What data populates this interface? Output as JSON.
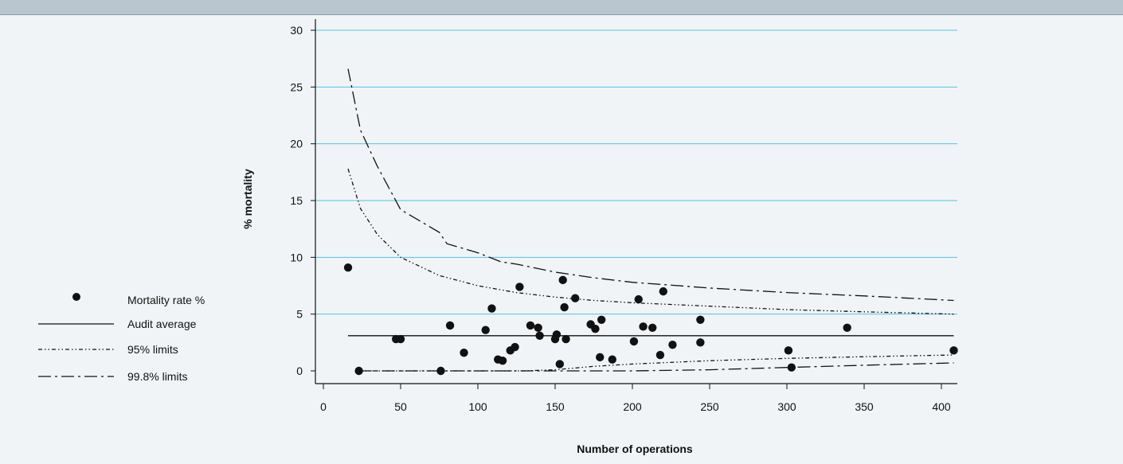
{
  "colors": {
    "background": "#f1f4f6",
    "top_band": "#b9c6cf",
    "gridline": "#4fc3e6",
    "ink": "#111111"
  },
  "chart_data": {
    "type": "scatter",
    "title": "",
    "xlabel": "Number of operations",
    "ylabel": "% mortality",
    "xlim": [
      0,
      410
    ],
    "ylim": [
      0,
      30
    ],
    "x_ticks": [
      "0",
      "50",
      "100",
      "150",
      "200",
      "250",
      "300",
      "350",
      "400"
    ],
    "y_ticks": [
      "0",
      "5",
      "10",
      "15",
      "20",
      "25",
      "30"
    ],
    "grid": "horizontal",
    "legend_position": "left",
    "series": [
      {
        "name": "Mortality rate %",
        "kind": "points",
        "points": [
          [
            16,
            9.1
          ],
          [
            23,
            0
          ],
          [
            47,
            2.8
          ],
          [
            50,
            2.8
          ],
          [
            76,
            0
          ],
          [
            82,
            4.0
          ],
          [
            91,
            1.6
          ],
          [
            105,
            3.6
          ],
          [
            109,
            5.5
          ],
          [
            113,
            1.0
          ],
          [
            116,
            0.9
          ],
          [
            121,
            1.8
          ],
          [
            124,
            2.1
          ],
          [
            127,
            7.4
          ],
          [
            134,
            4.0
          ],
          [
            139,
            3.8
          ],
          [
            140,
            3.1
          ],
          [
            150,
            2.8
          ],
          [
            151,
            3.2
          ],
          [
            153,
            0.6
          ],
          [
            155,
            8.0
          ],
          [
            156,
            5.6
          ],
          [
            157,
            2.8
          ],
          [
            163,
            6.4
          ],
          [
            173,
            4.1
          ],
          [
            176,
            3.7
          ],
          [
            179,
            1.2
          ],
          [
            180,
            4.5
          ],
          [
            187,
            1.0
          ],
          [
            201,
            2.6
          ],
          [
            204,
            6.3
          ],
          [
            207,
            3.9
          ],
          [
            213,
            3.8
          ],
          [
            218,
            1.4
          ],
          [
            220,
            7.0
          ],
          [
            226,
            2.3
          ],
          [
            244,
            4.5
          ],
          [
            244,
            2.5
          ],
          [
            301,
            1.8
          ],
          [
            303,
            0.3
          ],
          [
            339,
            3.8
          ],
          [
            408,
            1.8
          ]
        ]
      },
      {
        "name": "Audit average",
        "kind": "line",
        "style": "solid",
        "points": [
          [
            16,
            3.1
          ],
          [
            408,
            3.1
          ]
        ]
      },
      {
        "name": "95% limits",
        "kind": "line",
        "style": "dash-dot-dot",
        "upper": [
          [
            16,
            17.8
          ],
          [
            24,
            14.3
          ],
          [
            35,
            12.0
          ],
          [
            50,
            10.0
          ],
          [
            75,
            8.4
          ],
          [
            100,
            7.5
          ],
          [
            125,
            6.9
          ],
          [
            150,
            6.5
          ],
          [
            175,
            6.2
          ],
          [
            200,
            6.0
          ],
          [
            250,
            5.7
          ],
          [
            300,
            5.4
          ],
          [
            350,
            5.2
          ],
          [
            408,
            5.0
          ]
        ],
        "lower": [
          [
            23,
            0.0
          ],
          [
            130,
            0.0
          ],
          [
            150,
            0.1
          ],
          [
            175,
            0.4
          ],
          [
            200,
            0.6
          ],
          [
            250,
            0.9
          ],
          [
            300,
            1.1
          ],
          [
            350,
            1.25
          ],
          [
            408,
            1.4
          ]
        ]
      },
      {
        "name": "99.8% limits",
        "kind": "line",
        "style": "long-dash-dot",
        "upper": [
          [
            16,
            26.6
          ],
          [
            24,
            21.2
          ],
          [
            35,
            18.0
          ],
          [
            50,
            14.2
          ],
          [
            75,
            12.2
          ],
          [
            80,
            11.2
          ],
          [
            100,
            10.4
          ],
          [
            115,
            9.6
          ],
          [
            125,
            9.4
          ],
          [
            150,
            8.7
          ],
          [
            175,
            8.2
          ],
          [
            200,
            7.8
          ],
          [
            250,
            7.3
          ],
          [
            300,
            6.9
          ],
          [
            350,
            6.6
          ],
          [
            408,
            6.2
          ]
        ],
        "lower": [
          [
            23,
            0.0
          ],
          [
            200,
            0.0
          ],
          [
            250,
            0.1
          ],
          [
            300,
            0.3
          ],
          [
            350,
            0.5
          ],
          [
            408,
            0.7
          ]
        ]
      }
    ]
  }
}
